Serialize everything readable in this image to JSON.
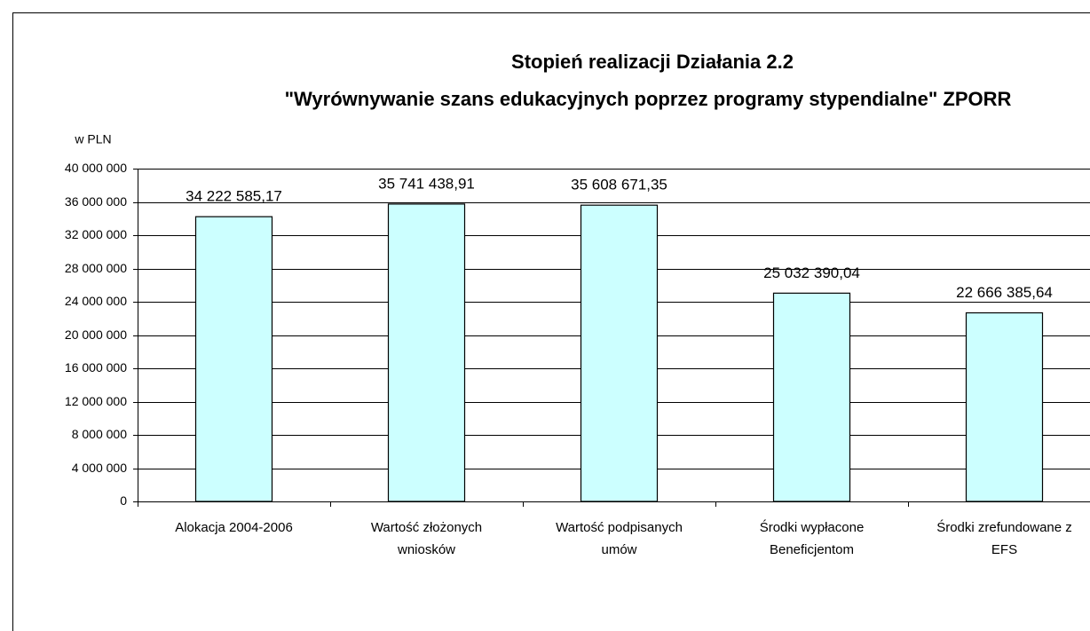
{
  "chart_data": {
    "type": "bar",
    "title": [
      "Stopień realizacji Działania 2.2",
      "\"Wyrównywanie szans edukacyjnych poprzez programy stypendialne\"   ZPORR"
    ],
    "y_label": "w PLN",
    "categories": [
      "Alokacja 2004-2006",
      "Wartość złożonych\nwniosków",
      "Wartość podpisanych\numów",
      "Środki wypłacone\nBeneficjentom",
      "Środki zrefundowane z\nEFS"
    ],
    "values": [
      34222585.17,
      35741438.91,
      35608671.35,
      25032390.04,
      22666385.64
    ],
    "value_labels": [
      "34 222 585,17",
      "35 741 438,91",
      "35 608 671,35",
      "25 032 390,04",
      "22 666 385,64"
    ],
    "color": "#ccffff",
    "ylim": [
      0,
      40000000
    ],
    "yticks": [
      0,
      {
        "value": 4000000,
        "label": "4 000 000"
      },
      {
        "value": 8000000,
        "label": "8 000 000"
      },
      {
        "value": 12000000,
        "label": "12 000 000"
      },
      {
        "value": 16000000,
        "label": "16 000 000"
      },
      {
        "value": 20000000,
        "label": "20 000 000"
      },
      {
        "value": 24000000,
        "label": "24 000 000"
      },
      {
        "value": 28000000,
        "label": "28 000 000"
      },
      {
        "value": 32000000,
        "label": "32 000 000"
      },
      {
        "value": 36000000,
        "label": "36 000 000"
      },
      {
        "value": 40000000,
        "label": "40 000 000"
      }
    ],
    "grid": true
  }
}
